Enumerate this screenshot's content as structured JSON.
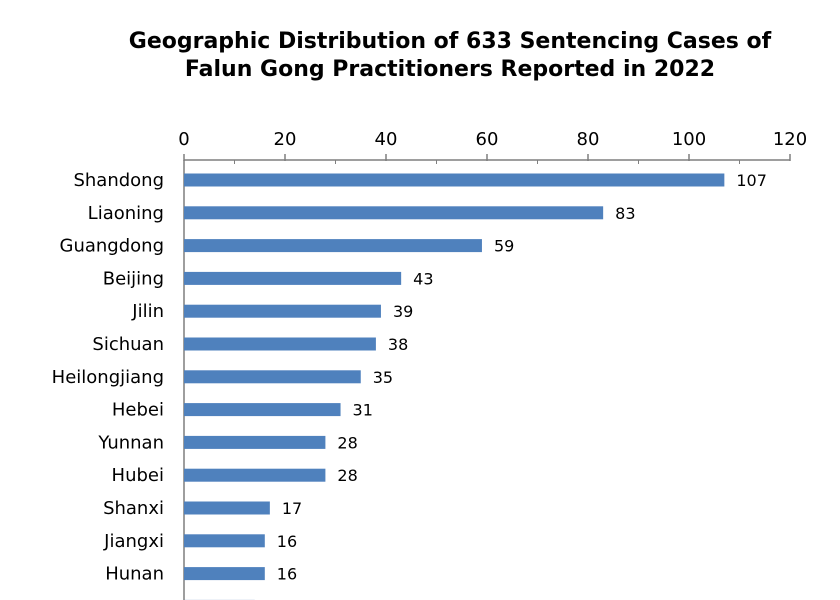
{
  "chart_data": {
    "type": "bar",
    "orientation": "horizontal",
    "title": [
      "Geographic Distribution of 633 Sentencing Cases of",
      "Falun Gong Practitioners Reported in 2022"
    ],
    "categories": [
      "Shandong",
      "Liaoning",
      "Guangdong",
      "Beijing",
      "Jilin",
      "Sichuan",
      "Heilongjiang",
      "Hebei",
      "Yunnan",
      "Hubei",
      "Shanxi",
      "Jiangxi",
      "Hunan"
    ],
    "values": [
      107,
      83,
      59,
      43,
      39,
      38,
      35,
      31,
      28,
      28,
      17,
      16,
      16
    ],
    "partially_visible_bar_value": 14,
    "xlim": [
      0,
      120
    ],
    "x_ticks": [
      0,
      20,
      40,
      60,
      80,
      100,
      120
    ],
    "x_axis_position": "top",
    "grid": false,
    "legend": "none",
    "colors": {
      "bar": "#4F81BD",
      "axis": "#7F7F7F",
      "text": "#000000"
    }
  }
}
